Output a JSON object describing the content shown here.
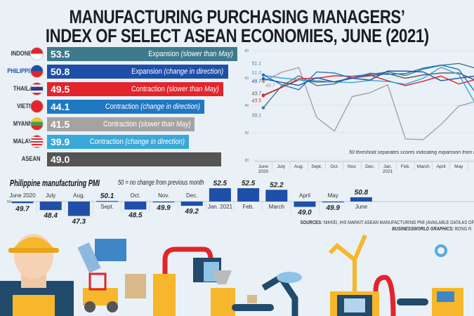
{
  "title": {
    "line1": "MANUFACTURING PURCHASING MANAGERS’",
    "line2": "INDEX OF SELECT ASEAN ECONOMIES, JUNE (2021)"
  },
  "colors": {
    "indonesia": "#3f7a8c",
    "philippines": "#1f4fa8",
    "thailand": "#e3242b",
    "vietnam": "#1f78c1",
    "myanmar": "#a3a3a3",
    "malaysia": "#3aa8d8",
    "asean": "#555555",
    "background": "#e9f1f7"
  },
  "country_bars": [
    {
      "country": "INDONESIA",
      "value": "53.5",
      "status": "Expansion",
      "note": "(slower than May)",
      "flag": "indonesia-flag"
    },
    {
      "country": "PHILIPPINES",
      "value": "50.8",
      "status": "Expansion",
      "note": "(change in direction)",
      "flag": "philippines-flag"
    },
    {
      "country": "THAILAND",
      "value": "49.5",
      "status": "Contraction",
      "note": "(slower than May)",
      "flag": "thailand-flag"
    },
    {
      "country": "VIETNAM",
      "value": "44.1",
      "status": "Contraction",
      "note": "(change in direction)",
      "flag": "vietnam-flag"
    },
    {
      "country": "MYANMAR",
      "value": "41.5",
      "status": "Contraction",
      "note": "(slower than May)",
      "flag": "myanmar-flag"
    },
    {
      "country": "MALAYSIA",
      "value": "39.9",
      "status": "Contraction",
      "note": "(change in direction)",
      "flag": "malaysia-flag"
    },
    {
      "country": "ASEAN",
      "value": "49.0",
      "status": "",
      "note": "",
      "flag": ""
    }
  ],
  "chart_data": [
    {
      "type": "bar",
      "orientation": "horizontal",
      "categories": [
        "INDONESIA",
        "PHILIPPINES",
        "THAILAND",
        "VIETNAM",
        "MYANMAR",
        "MALAYSIA",
        "ASEAN"
      ],
      "values": [
        53.5,
        50.8,
        49.5,
        44.1,
        41.5,
        39.9,
        49.0
      ]
    },
    {
      "type": "line",
      "x": [
        "June 2020",
        "July",
        "Aug.",
        "Sept.",
        "Oct.",
        "Nov.",
        "Dec.",
        "Jan. 2021",
        "Feb.",
        "March",
        "April",
        "May",
        "June"
      ],
      "x_tick_labels": [
        [
          "June",
          "2020"
        ],
        [
          "July"
        ],
        [
          "Aug."
        ],
        [
          "Sept."
        ],
        [
          "Oct."
        ],
        [
          "Nov."
        ],
        [
          "Dec."
        ],
        [
          "Jan.",
          "2021"
        ],
        [
          "Feb."
        ],
        [
          "March"
        ],
        [
          "April"
        ],
        [
          "May"
        ],
        [
          ""
        ]
      ],
      "ylim": [
        20,
        60
      ],
      "yticks": [
        "60",
        "50",
        "40",
        "30",
        "20"
      ],
      "grid": true,
      "annotation": "50 threshold separates scores indicating expansion from those showing contraction",
      "series": [
        {
          "key": "myanmar",
          "start_label": "48.7",
          "values": [
            48.7,
            52.0,
            53.8,
            35.6,
            30.6,
            43.2,
            44.6,
            47.5,
            27.7,
            27.5,
            33.0,
            39.7,
            41.5
          ]
        },
        {
          "key": "indonesia",
          "start_label": "39.1",
          "values": [
            39.1,
            46.9,
            50.8,
            47.2,
            47.8,
            50.6,
            51.3,
            52.2,
            50.9,
            53.2,
            54.6,
            55.3,
            53.5
          ]
        },
        {
          "key": "asean",
          "start_label": "43.7",
          "values": [
            43.7,
            46.5,
            49.3,
            48.5,
            48.6,
            50.0,
            50.8,
            51.6,
            49.9,
            51.1,
            51.8,
            51.8,
            49.0
          ]
        },
        {
          "key": "thailand",
          "start_label": "43.5",
          "values": [
            43.5,
            46.4,
            49.7,
            49.9,
            50.8,
            50.6,
            51.0,
            49.0,
            47.2,
            48.8,
            50.7,
            47.8,
            49.5
          ]
        },
        {
          "key": "malaysia",
          "start_label": "51.0",
          "values": [
            51.0,
            50.0,
            49.3,
            49.0,
            48.5,
            48.3,
            49.1,
            48.7,
            47.7,
            49.9,
            53.9,
            51.3,
            39.9
          ]
        },
        {
          "key": "vietnam",
          "start_label": "51.1",
          "values": [
            51.1,
            47.6,
            45.7,
            52.2,
            51.8,
            49.9,
            51.7,
            51.3,
            51.6,
            53.6,
            54.7,
            53.1,
            44.1
          ]
        },
        {
          "key": "philippines",
          "start_label": "49.7",
          "values": [
            49.7,
            48.4,
            47.3,
            50.1,
            48.5,
            49.9,
            49.2,
            52.5,
            52.5,
            52.2,
            49.0,
            49.9,
            50.8
          ]
        }
      ]
    },
    {
      "type": "bar",
      "title": "Philippine manufacturing PMI",
      "subtitle": "50 = no change from previous month",
      "baseline": 50,
      "baseline_label": "50",
      "categories": [
        "June 2020",
        "July",
        "Aug.",
        "Sept.",
        "Oct.",
        "Nov.",
        "Dec.",
        "Jan. 2021",
        "Feb.",
        "March",
        "April",
        "May",
        "June"
      ],
      "values": [
        49.7,
        48.4,
        47.3,
        50.1,
        48.5,
        49.9,
        49.2,
        52.5,
        52.5,
        52.2,
        49.0,
        49.9,
        50.8
      ],
      "value_labels": [
        "49.7",
        "48.4",
        "47.3",
        "50.1",
        "48.5",
        "49.9",
        "49.2",
        "52.5",
        "52.5",
        "52.2",
        "49.0",
        "49.9",
        "50.8"
      ]
    }
  ],
  "sources": {
    "label": "SOURCES:",
    "text": " NIKKEI, IHS MARKIT ASEAN MANUFACTURING PMI (AVAILABLE DATA AS OF"
  },
  "credit": {
    "label": "BUSINESSWORLD GRAPHICS:",
    "text": " BONG R."
  }
}
